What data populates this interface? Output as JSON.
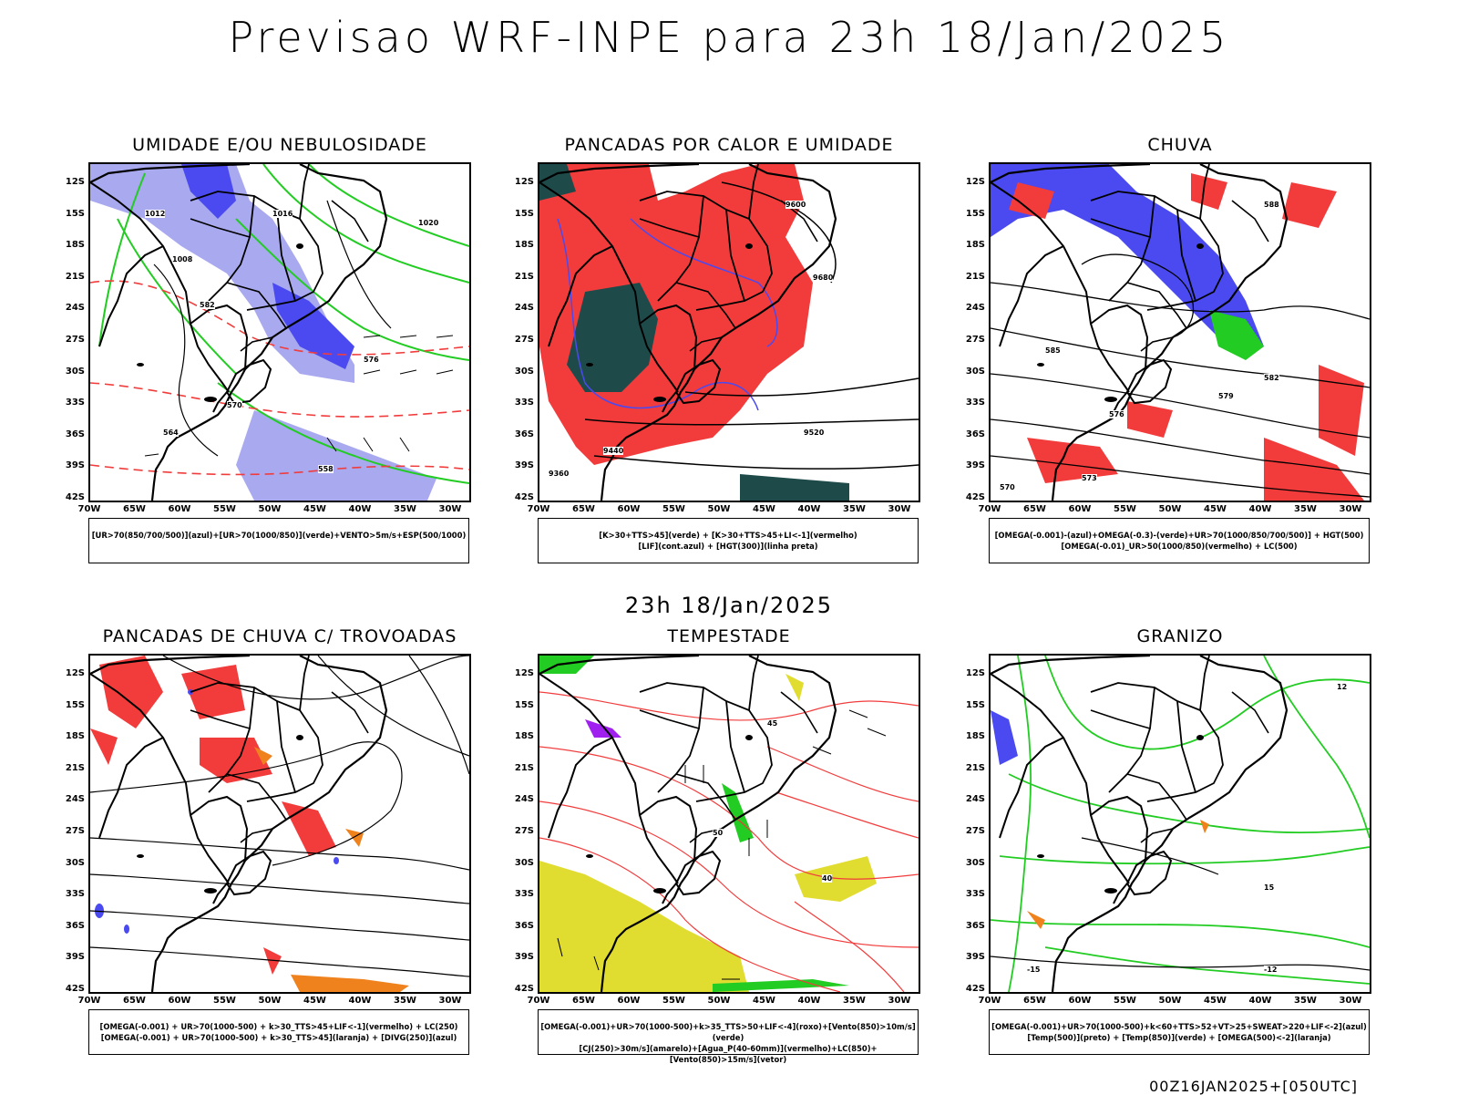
{
  "header": {
    "title": "Previsao WRF-INPE  para 23h 18/Jan/2025",
    "subtitle": "23h 18/Jan/2025",
    "footer": "00Z16JAN2025+[050UTC]"
  },
  "axes": {
    "lat_labels": [
      "12S",
      "15S",
      "18S",
      "21S",
      "24S",
      "27S",
      "30S",
      "33S",
      "36S",
      "39S",
      "42S"
    ],
    "lon_labels": [
      "70W",
      "65W",
      "60W",
      "55W",
      "50W",
      "45W",
      "40W",
      "35W",
      "30W"
    ]
  },
  "panels": [
    {
      "title": "UMIDADE E/OU NEBULOSIDADE",
      "legend": [
        "[UR>70(850/700/500)](azul)+[UR>70(1000/850)](verde)+VENTO>5m/s+ESP(500/1000)"
      ],
      "labels": [
        "1012",
        "1016",
        "1008",
        "1020",
        "570",
        "576",
        "582",
        "564",
        "558"
      ]
    },
    {
      "title": "PANCADAS POR CALOR E UMIDADE",
      "legend": [
        "[K>30+TTS>45](verde) + [K>30+TTS>45+LI<-1](vermelho)",
        "[LIF](cont.azul) + [HGT(300)](linha preta)"
      ],
      "labels": [
        "9600",
        "9680",
        "9520",
        "9440",
        "9360"
      ]
    },
    {
      "title": "CHUVA",
      "legend": [
        "[OMEGA(-0.001)-(azul)+OMEGA(-0.3)-(verde)+UR>70(1000/850/700/500)] + HGT(500)",
        "[OMEGA(-0.01)_UR>50(1000/850)(vermelho) + LC(500)"
      ],
      "labels": [
        "588",
        "585",
        "582",
        "579",
        "576",
        "573",
        "570"
      ]
    },
    {
      "title": "PANCADAS DE CHUVA C/ TROVOADAS",
      "legend": [
        "[OMEGA(-0.001) + UR>70(1000-500) + k>30_TTS>45+LIF<-1](vermelho) + LC(250)",
        "[OMEGA(-0.001) + UR>70(1000-500) + k>30_TTS>45](laranja) + [DIVG(250)](azul)"
      ],
      "labels": []
    },
    {
      "title": "TEMPESTADE",
      "legend": [
        "[OMEGA(-0.001)+UR>70(1000-500)+k>35_TTS>50+LIF<-4](roxo)+[Vento(850)>10m/s](verde)",
        "[CJ(250)>30m/s](amarelo)+[Agua_P(40-60mm)](vermelho)+LC(850)+[Vento(850)>15m/s](vetor)"
      ],
      "labels": [
        "45",
        "50",
        "40"
      ]
    },
    {
      "title": "GRANIZO",
      "legend": [
        "[OMEGA(-0.001)+UR>70(1000-500)+k<60+TTS>52+VT>25+SWEAT>220+LIF<-2](azul)",
        "[Temp(500)](preto) + [Temp(850)](verde) + [OMEGA(500)<-2](laranja)"
      ],
      "labels": [
        "-12",
        "-15",
        "12",
        "15"
      ]
    }
  ],
  "colors": {
    "blue": "#4a4af0",
    "lightblue": "#a9a9f0",
    "green": "#22cc22",
    "red": "#f23c3c",
    "darkgreen": "#1f4a4a",
    "yellow": "#e0dc30",
    "orange": "#f0821e",
    "purple": "#a020f0"
  }
}
